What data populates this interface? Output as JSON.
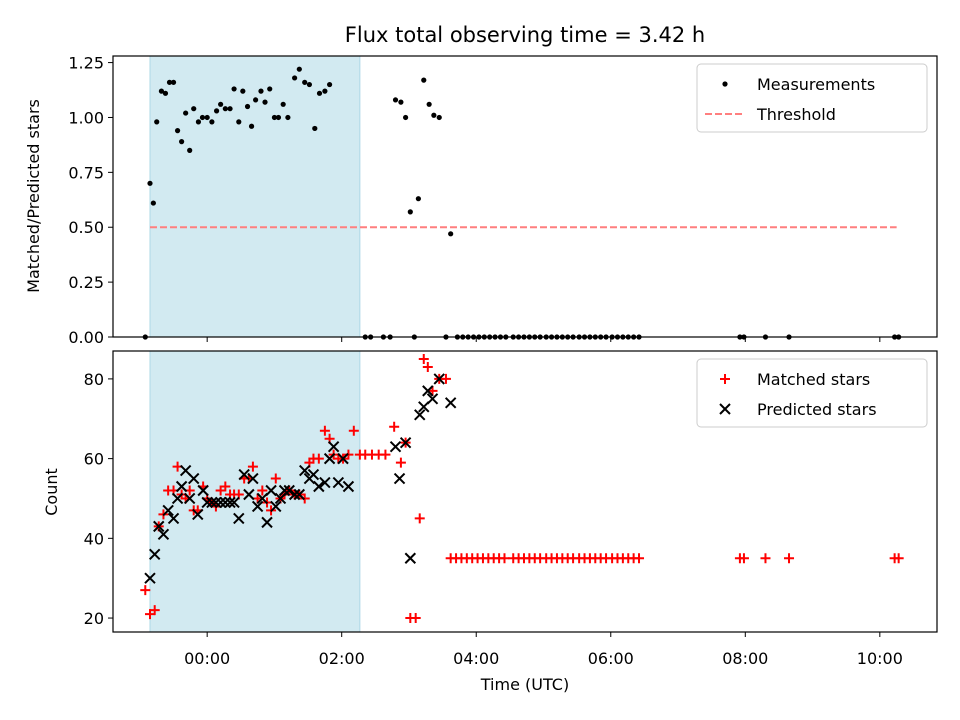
{
  "chart_data": [
    {
      "type": "scatter",
      "title": "Flux total observing time = 3.42 h",
      "xlabel": "",
      "ylabel": "Matched/Predicted stars",
      "xlim": [
        -1.4,
        10.85
      ],
      "ylim": [
        0,
        1.28
      ],
      "yticks": [
        0.0,
        0.25,
        0.5,
        0.75,
        1.0,
        1.25
      ],
      "ytick_labels": [
        "0.00",
        "0.25",
        "0.50",
        "0.75",
        "1.00",
        "1.25"
      ],
      "shaded_span": [
        -0.85,
        2.27
      ],
      "threshold": {
        "value": 0.5,
        "x": [
          -0.85,
          10.25
        ],
        "color": "#ff7f7f"
      },
      "legend": {
        "position": "top-right",
        "entries": [
          {
            "label": "Measurements",
            "marker": "dot",
            "color": "#000000"
          },
          {
            "label": "Threshold",
            "marker": "dashed-line",
            "color": "#ff7f7f"
          }
        ]
      },
      "series": [
        {
          "name": "Measurements",
          "color": "#000000",
          "points": [
            [
              -0.92,
              0.0
            ],
            [
              -0.85,
              0.7
            ],
            [
              -0.8,
              0.61
            ],
            [
              -0.75,
              0.98
            ],
            [
              -0.68,
              1.12
            ],
            [
              -0.62,
              1.11
            ],
            [
              -0.56,
              1.16
            ],
            [
              -0.5,
              1.16
            ],
            [
              -0.44,
              0.94
            ],
            [
              -0.38,
              0.89
            ],
            [
              -0.32,
              1.02
            ],
            [
              -0.26,
              0.85
            ],
            [
              -0.2,
              1.04
            ],
            [
              -0.13,
              0.98
            ],
            [
              -0.07,
              1.0
            ],
            [
              0.0,
              1.0
            ],
            [
              0.07,
              0.98
            ],
            [
              0.14,
              1.03
            ],
            [
              0.2,
              1.06
            ],
            [
              0.27,
              1.04
            ],
            [
              0.34,
              1.04
            ],
            [
              0.4,
              1.13
            ],
            [
              0.47,
              0.98
            ],
            [
              0.53,
              1.12
            ],
            [
              0.6,
              1.05
            ],
            [
              0.66,
              0.96
            ],
            [
              0.72,
              1.08
            ],
            [
              0.8,
              1.12
            ],
            [
              0.86,
              1.07
            ],
            [
              0.93,
              1.13
            ],
            [
              1.0,
              1.0
            ],
            [
              1.06,
              1.0
            ],
            [
              1.13,
              1.06
            ],
            [
              1.2,
              1.0
            ],
            [
              1.3,
              1.18
            ],
            [
              1.37,
              1.22
            ],
            [
              1.45,
              1.16
            ],
            [
              1.52,
              1.15
            ],
            [
              1.6,
              0.95
            ],
            [
              1.67,
              1.11
            ],
            [
              1.75,
              1.12
            ],
            [
              1.82,
              1.15
            ],
            [
              2.35,
              0.0
            ],
            [
              2.43,
              0.0
            ],
            [
              2.62,
              0.0
            ],
            [
              2.72,
              0.0
            ],
            [
              2.8,
              1.08
            ],
            [
              2.88,
              1.07
            ],
            [
              2.95,
              1.0
            ],
            [
              3.02,
              0.57
            ],
            [
              3.08,
              0.0
            ],
            [
              3.14,
              0.63
            ],
            [
              3.22,
              1.17
            ],
            [
              3.3,
              1.06
            ],
            [
              3.37,
              1.01
            ],
            [
              3.45,
              1.0
            ],
            [
              3.55,
              0.0
            ],
            [
              3.62,
              0.47
            ],
            [
              3.72,
              0.0
            ],
            [
              3.8,
              0.0
            ],
            [
              3.88,
              0.0
            ],
            [
              3.96,
              0.0
            ],
            [
              4.04,
              0.0
            ],
            [
              4.12,
              0.0
            ],
            [
              4.2,
              0.0
            ],
            [
              4.28,
              0.0
            ],
            [
              4.36,
              0.0
            ],
            [
              4.44,
              0.0
            ],
            [
              4.55,
              0.0
            ],
            [
              4.63,
              0.0
            ],
            [
              4.71,
              0.0
            ],
            [
              4.79,
              0.0
            ],
            [
              4.87,
              0.0
            ],
            [
              4.95,
              0.0
            ],
            [
              5.04,
              0.0
            ],
            [
              5.12,
              0.0
            ],
            [
              5.2,
              0.0
            ],
            [
              5.28,
              0.0
            ],
            [
              5.36,
              0.0
            ],
            [
              5.44,
              0.0
            ],
            [
              5.53,
              0.0
            ],
            [
              5.61,
              0.0
            ],
            [
              5.69,
              0.0
            ],
            [
              5.77,
              0.0
            ],
            [
              5.85,
              0.0
            ],
            [
              5.93,
              0.0
            ],
            [
              6.02,
              0.0
            ],
            [
              6.1,
              0.0
            ],
            [
              6.18,
              0.0
            ],
            [
              6.26,
              0.0
            ],
            [
              6.34,
              0.0
            ],
            [
              6.42,
              0.0
            ],
            [
              7.92,
              0.0
            ],
            [
              7.98,
              0.0
            ],
            [
              8.3,
              0.0
            ],
            [
              8.65,
              0.0
            ],
            [
              10.22,
              0.0
            ],
            [
              10.28,
              0.0
            ]
          ]
        }
      ]
    },
    {
      "type": "scatter",
      "title": "",
      "xlabel": "Time (UTC)",
      "ylabel": "Count",
      "xlim": [
        -1.4,
        10.85
      ],
      "ylim": [
        16.5,
        87
      ],
      "xticks": [
        0,
        2,
        4,
        6,
        8,
        10
      ],
      "xtick_labels": [
        "00:00",
        "02:00",
        "04:00",
        "06:00",
        "08:00",
        "10:00"
      ],
      "yticks": [
        20,
        40,
        60,
        80
      ],
      "ytick_labels": [
        "20",
        "40",
        "60",
        "80"
      ],
      "shaded_span": [
        -0.85,
        2.27
      ],
      "legend": {
        "position": "top-right",
        "entries": [
          {
            "label": "Matched stars",
            "marker": "plus",
            "color": "#ff0000"
          },
          {
            "label": "Predicted stars",
            "marker": "x",
            "color": "#000000"
          }
        ]
      },
      "series": [
        {
          "name": "Matched stars",
          "marker": "plus",
          "color": "#ff0000",
          "points": [
            [
              -0.92,
              27
            ],
            [
              -0.85,
              21
            ],
            [
              -0.78,
              22
            ],
            [
              -0.72,
              43
            ],
            [
              -0.65,
              46
            ],
            [
              -0.58,
              52
            ],
            [
              -0.5,
              52
            ],
            [
              -0.44,
              58
            ],
            [
              -0.38,
              51
            ],
            [
              -0.32,
              50
            ],
            [
              -0.26,
              52
            ],
            [
              -0.2,
              47
            ],
            [
              -0.14,
              47
            ],
            [
              -0.06,
              53
            ],
            [
              0.0,
              50
            ],
            [
              0.07,
              49
            ],
            [
              0.13,
              48
            ],
            [
              0.2,
              52
            ],
            [
              0.27,
              53
            ],
            [
              0.34,
              51
            ],
            [
              0.4,
              51
            ],
            [
              0.47,
              51
            ],
            [
              0.55,
              55
            ],
            [
              0.62,
              55
            ],
            [
              0.68,
              58
            ],
            [
              0.75,
              50
            ],
            [
              0.82,
              52
            ],
            [
              0.89,
              49
            ],
            [
              0.95,
              47
            ],
            [
              1.02,
              55
            ],
            [
              1.09,
              50
            ],
            [
              1.15,
              51
            ],
            [
              1.22,
              52
            ],
            [
              1.3,
              51
            ],
            [
              1.37,
              51
            ],
            [
              1.45,
              50
            ],
            [
              1.52,
              59
            ],
            [
              1.58,
              60
            ],
            [
              1.66,
              60
            ],
            [
              1.75,
              67
            ],
            [
              1.82,
              65
            ],
            [
              1.88,
              61
            ],
            [
              1.95,
              60
            ],
            [
              2.02,
              60
            ],
            [
              2.1,
              61
            ],
            [
              2.18,
              67
            ],
            [
              2.27,
              61
            ],
            [
              2.35,
              61
            ],
            [
              2.45,
              61
            ],
            [
              2.55,
              61
            ],
            [
              2.65,
              61
            ],
            [
              2.78,
              68
            ],
            [
              2.88,
              59
            ],
            [
              2.95,
              64
            ],
            [
              3.02,
              20
            ],
            [
              3.1,
              20
            ],
            [
              3.16,
              45
            ],
            [
              3.22,
              85
            ],
            [
              3.28,
              83
            ],
            [
              3.35,
              77
            ],
            [
              3.45,
              80
            ],
            [
              3.55,
              80
            ],
            [
              3.62,
              35
            ],
            [
              3.7,
              35
            ],
            [
              3.78,
              35
            ],
            [
              3.86,
              35
            ],
            [
              3.94,
              35
            ],
            [
              4.02,
              35
            ],
            [
              4.1,
              35
            ],
            [
              4.18,
              35
            ],
            [
              4.26,
              35
            ],
            [
              4.34,
              35
            ],
            [
              4.42,
              35
            ],
            [
              4.55,
              35
            ],
            [
              4.63,
              35
            ],
            [
              4.71,
              35
            ],
            [
              4.79,
              35
            ],
            [
              4.87,
              35
            ],
            [
              4.95,
              35
            ],
            [
              5.04,
              35
            ],
            [
              5.12,
              35
            ],
            [
              5.2,
              35
            ],
            [
              5.28,
              35
            ],
            [
              5.36,
              35
            ],
            [
              5.44,
              35
            ],
            [
              5.53,
              35
            ],
            [
              5.61,
              35
            ],
            [
              5.69,
              35
            ],
            [
              5.77,
              35
            ],
            [
              5.85,
              35
            ],
            [
              5.93,
              35
            ],
            [
              6.02,
              35
            ],
            [
              6.1,
              35
            ],
            [
              6.18,
              35
            ],
            [
              6.26,
              35
            ],
            [
              6.34,
              35
            ],
            [
              6.42,
              35
            ],
            [
              7.92,
              35
            ],
            [
              7.98,
              35
            ],
            [
              8.3,
              35
            ],
            [
              8.65,
              35
            ],
            [
              10.22,
              35
            ],
            [
              10.28,
              35
            ]
          ]
        },
        {
          "name": "Predicted stars",
          "marker": "x",
          "color": "#000000",
          "points": [
            [
              -0.85,
              30
            ],
            [
              -0.78,
              36
            ],
            [
              -0.72,
              43
            ],
            [
              -0.65,
              41
            ],
            [
              -0.58,
              47
            ],
            [
              -0.5,
              45
            ],
            [
              -0.44,
              50
            ],
            [
              -0.38,
              53
            ],
            [
              -0.32,
              57
            ],
            [
              -0.26,
              50
            ],
            [
              -0.2,
              55
            ],
            [
              -0.14,
              46
            ],
            [
              -0.06,
              52
            ],
            [
              0.0,
              49
            ],
            [
              0.07,
              49
            ],
            [
              0.13,
              49
            ],
            [
              0.2,
              49
            ],
            [
              0.27,
              49
            ],
            [
              0.34,
              49
            ],
            [
              0.4,
              49
            ],
            [
              0.47,
              45
            ],
            [
              0.55,
              56
            ],
            [
              0.62,
              51
            ],
            [
              0.68,
              55
            ],
            [
              0.75,
              48
            ],
            [
              0.82,
              50
            ],
            [
              0.89,
              44
            ],
            [
              0.95,
              52
            ],
            [
              1.02,
              48
            ],
            [
              1.09,
              50
            ],
            [
              1.15,
              52
            ],
            [
              1.22,
              52
            ],
            [
              1.3,
              51
            ],
            [
              1.37,
              51
            ],
            [
              1.45,
              57
            ],
            [
              1.52,
              55
            ],
            [
              1.58,
              56
            ],
            [
              1.66,
              53
            ],
            [
              1.75,
              54
            ],
            [
              1.82,
              60
            ],
            [
              1.88,
              63
            ],
            [
              1.95,
              54
            ],
            [
              2.02,
              60
            ],
            [
              2.1,
              53
            ],
            [
              2.8,
              63
            ],
            [
              2.86,
              55
            ],
            [
              2.95,
              64
            ],
            [
              3.02,
              35
            ],
            [
              3.16,
              71
            ],
            [
              3.22,
              73
            ],
            [
              3.28,
              77
            ],
            [
              3.35,
              75
            ],
            [
              3.45,
              80
            ],
            [
              3.62,
              74
            ]
          ]
        }
      ]
    }
  ]
}
